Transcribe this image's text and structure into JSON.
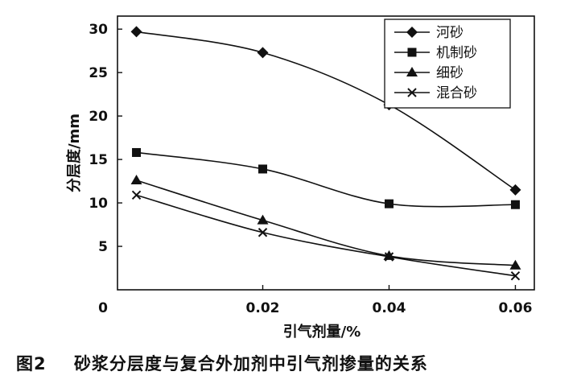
{
  "chart_data": {
    "type": "line",
    "title": "",
    "xlabel": "引气剂量/%",
    "ylabel": "分层度/mm",
    "x": [
      0,
      0.02,
      0.04,
      0.06
    ],
    "x_tick_labels": [
      "0",
      "0.02",
      "0.04",
      "0.06"
    ],
    "y_tick_labels": [
      "5",
      "10",
      "15",
      "20",
      "25",
      "30"
    ],
    "y_ticks": [
      5,
      10,
      15,
      20,
      25,
      30
    ],
    "xlim": [
      -0.003,
      0.063
    ],
    "ylim": [
      0,
      31.5
    ],
    "grid": false,
    "legend_position": "top-right",
    "series": [
      {
        "name": "河砂",
        "marker": "diamond",
        "values": [
          29.7,
          27.3,
          21.3,
          11.5
        ]
      },
      {
        "name": "机制砂",
        "marker": "square",
        "values": [
          15.8,
          13.9,
          9.9,
          9.8
        ]
      },
      {
        "name": "细砂",
        "marker": "triangle",
        "values": [
          12.6,
          8.0,
          3.9,
          2.8
        ]
      },
      {
        "name": "混合砂",
        "marker": "x",
        "values": [
          10.9,
          6.6,
          3.8,
          1.6
        ]
      }
    ]
  },
  "caption": {
    "figure_number": "图2",
    "text": "砂浆分层度与复合外加剂中引气剂掺量的关系"
  },
  "colors": {
    "ink": "#111111",
    "background": "#ffffff"
  }
}
